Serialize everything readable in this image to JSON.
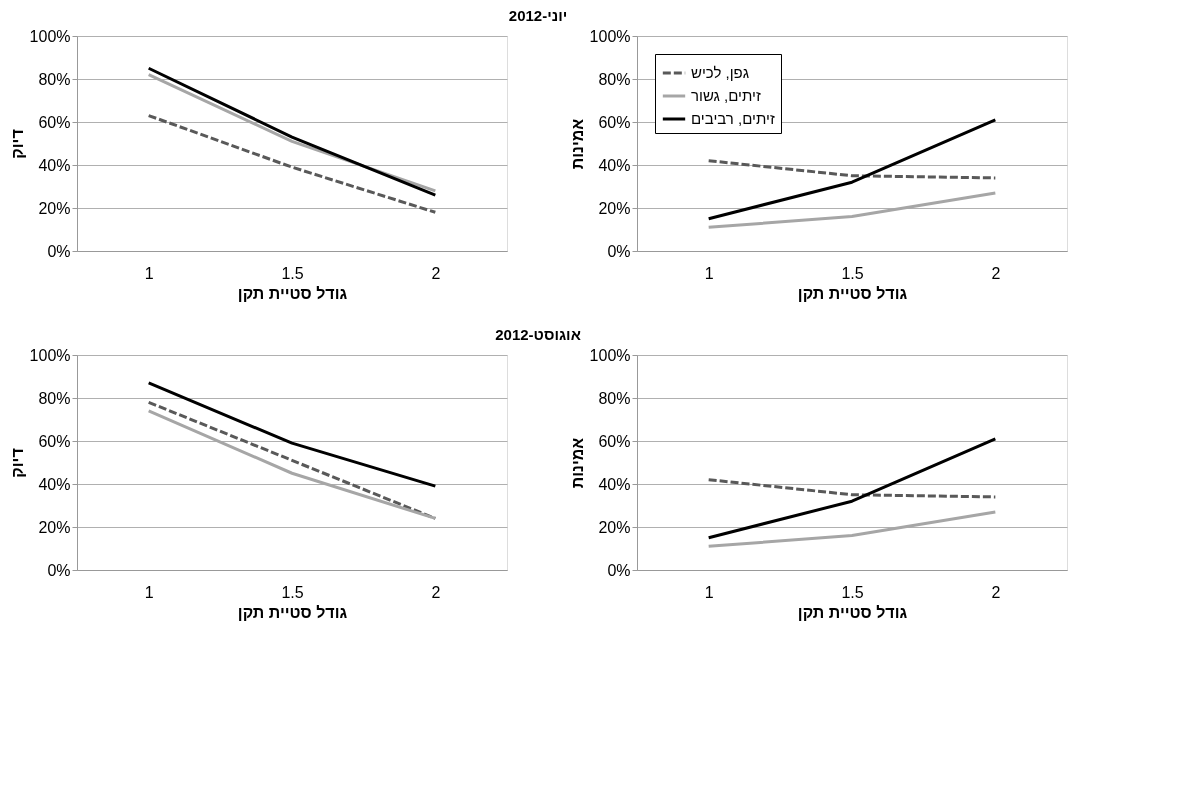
{
  "chart_data": [
    {
      "type": "line",
      "title": "יוני-2012",
      "xlabel": "גודל סטיית תקן",
      "ylabel": "דיוק",
      "categories": [
        "1",
        "1.5",
        "2"
      ],
      "ylim": [
        0,
        100
      ],
      "yticks": [
        {
          "value": 0,
          "label": "0%"
        },
        {
          "value": 20,
          "label": "20%"
        },
        {
          "value": 40,
          "label": "40%"
        },
        {
          "value": 60,
          "label": "60%"
        },
        {
          "value": 80,
          "label": "80%"
        },
        {
          "value": 100,
          "label": "100%"
        }
      ],
      "grid": "y",
      "series": [
        {
          "color": "#595959",
          "line_style": "dashed",
          "values": [
            63,
            39,
            18
          ]
        },
        {
          "color": "#a6a6a6",
          "line_style": "solid",
          "values": [
            82,
            51,
            28
          ]
        },
        {
          "color": "#000000",
          "line_style": "solid",
          "values": [
            85,
            53,
            26
          ]
        }
      ]
    },
    {
      "type": "line",
      "xlabel": "גודל סטיית תקן",
      "ylabel": "אמינות",
      "categories": [
        "1",
        "1.5",
        "2"
      ],
      "ylim": [
        0,
        100
      ],
      "yticks": [
        {
          "value": 0,
          "label": "0%"
        },
        {
          "value": 20,
          "label": "20%"
        },
        {
          "value": 40,
          "label": "40%"
        },
        {
          "value": 60,
          "label": "60%"
        },
        {
          "value": 80,
          "label": "80%"
        },
        {
          "value": 100,
          "label": "100%"
        }
      ],
      "grid": "y",
      "legend": "top left",
      "series": [
        {
          "name": "גפן, לכיש",
          "color": "#595959",
          "line_style": "dashed",
          "values": [
            42,
            35,
            34
          ]
        },
        {
          "name": "זיתים, גשור",
          "color": "#a6a6a6",
          "line_style": "solid",
          "values": [
            11,
            16,
            27
          ]
        },
        {
          "name": "זיתים, רביבים",
          "color": "#000000",
          "line_style": "solid",
          "values": [
            15,
            32,
            61
          ]
        }
      ]
    },
    {
      "type": "line",
      "title": "אוגוסט-2012",
      "xlabel": "גודל סטיית תקן",
      "ylabel": "דיוק",
      "categories": [
        "1",
        "1.5",
        "2"
      ],
      "ylim": [
        0,
        100
      ],
      "yticks": [
        {
          "value": 0,
          "label": "0%"
        },
        {
          "value": 20,
          "label": "20%"
        },
        {
          "value": 40,
          "label": "40%"
        },
        {
          "value": 60,
          "label": "60%"
        },
        {
          "value": 80,
          "label": "80%"
        },
        {
          "value": 100,
          "label": "100%"
        }
      ],
      "grid": "y",
      "series": [
        {
          "color": "#595959",
          "line_style": "dashed",
          "values": [
            78,
            51,
            24
          ]
        },
        {
          "color": "#a6a6a6",
          "line_style": "solid",
          "values": [
            74,
            45,
            24
          ]
        },
        {
          "color": "#000000",
          "line_style": "solid",
          "values": [
            87,
            59,
            39
          ]
        }
      ]
    },
    {
      "type": "line",
      "xlabel": "גודל סטיית תקן",
      "ylabel": "אמינות",
      "categories": [
        "1",
        "1.5",
        "2"
      ],
      "ylim": [
        0,
        100
      ],
      "yticks": [
        {
          "value": 0,
          "label": "0%"
        },
        {
          "value": 20,
          "label": "20%"
        },
        {
          "value": 40,
          "label": "40%"
        },
        {
          "value": 60,
          "label": "60%"
        },
        {
          "value": 80,
          "label": "80%"
        },
        {
          "value": 100,
          "label": "100%"
        }
      ],
      "grid": "y",
      "series": [
        {
          "color": "#595959",
          "line_style": "dashed",
          "values": [
            42,
            35,
            34
          ]
        },
        {
          "color": "#a6a6a6",
          "line_style": "solid",
          "values": [
            11,
            16,
            27
          ]
        },
        {
          "color": "#000000",
          "line_style": "solid",
          "values": [
            15,
            32,
            61
          ]
        }
      ]
    }
  ]
}
